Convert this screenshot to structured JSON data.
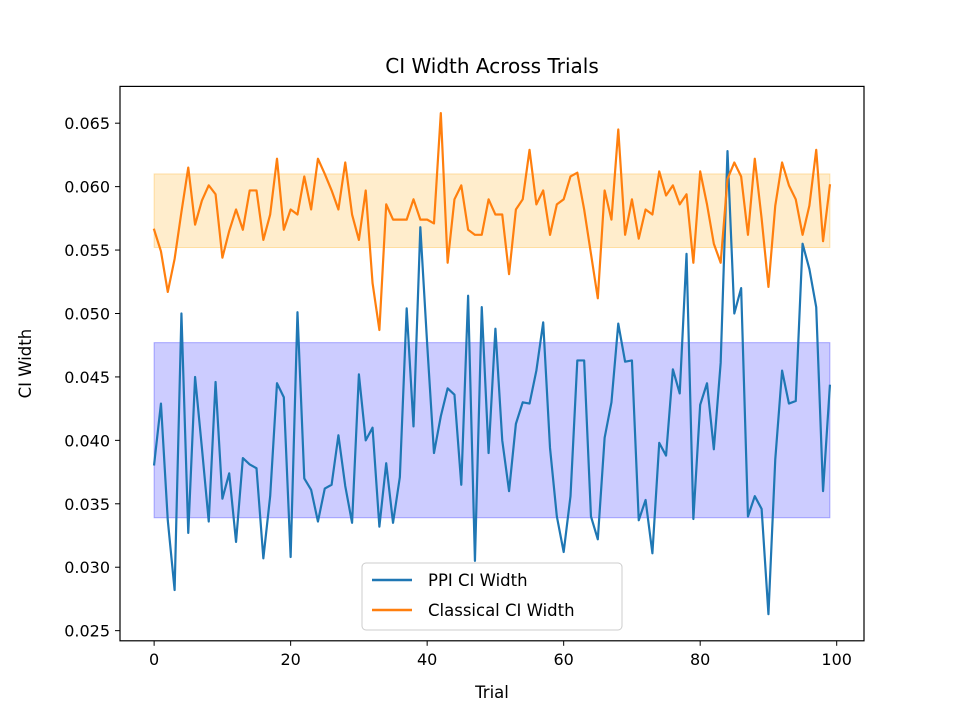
{
  "chart_data": {
    "type": "line",
    "title": "CI Width Across Trials",
    "xlabel": "Trial",
    "ylabel": "CI Width",
    "xlim": [
      -5,
      104
    ],
    "ylim": [
      0.0242,
      0.0679
    ],
    "xticks": [
      0,
      20,
      40,
      60,
      80,
      100
    ],
    "yticks": [
      0.025,
      0.03,
      0.035,
      0.04,
      0.045,
      0.05,
      0.055,
      0.06,
      0.065
    ],
    "grid": false,
    "legend_position": "lower center",
    "bands": [
      {
        "series": "PPI CI Width",
        "x_range": [
          0,
          99
        ],
        "y_range": [
          0.0339,
          0.0477
        ],
        "color": "#0000ff",
        "opacity": 0.2
      },
      {
        "series": "Classical CI Width",
        "x_range": [
          0,
          99
        ],
        "y_range": [
          0.0552,
          0.061
        ],
        "color": "#ffa500",
        "opacity": 0.2
      }
    ],
    "series": [
      {
        "name": "PPI CI Width",
        "color": "#1f77b4",
        "values": [
          0.0381,
          0.0429,
          0.0337,
          0.0282,
          0.05,
          0.0327,
          0.045,
          0.0394,
          0.0336,
          0.0446,
          0.0354,
          0.0374,
          0.032,
          0.0386,
          0.0381,
          0.0378,
          0.0307,
          0.0356,
          0.0445,
          0.0434,
          0.0308,
          0.0501,
          0.037,
          0.0361,
          0.0336,
          0.0362,
          0.0365,
          0.0404,
          0.0364,
          0.0335,
          0.0452,
          0.04,
          0.041,
          0.0332,
          0.0382,
          0.0335,
          0.0371,
          0.0504,
          0.0411,
          0.0568,
          0.0476,
          0.039,
          0.0419,
          0.0441,
          0.0436,
          0.0365,
          0.0514,
          0.0305,
          0.0505,
          0.039,
          0.0488,
          0.04,
          0.036,
          0.0413,
          0.043,
          0.0429,
          0.0455,
          0.0493,
          0.0394,
          0.034,
          0.0312,
          0.0356,
          0.0463,
          0.0463,
          0.034,
          0.0322,
          0.0402,
          0.043,
          0.0492,
          0.0462,
          0.0463,
          0.0337,
          0.0353,
          0.0311,
          0.0398,
          0.0388,
          0.0456,
          0.0437,
          0.0547,
          0.0338,
          0.0428,
          0.0445,
          0.0393,
          0.0461,
          0.0628,
          0.05,
          0.052,
          0.034,
          0.0356,
          0.0346,
          0.0263,
          0.0385,
          0.0455,
          0.0429,
          0.0431,
          0.0555,
          0.0535,
          0.0505,
          0.036,
          0.0443
        ]
      },
      {
        "name": "Classical CI Width",
        "color": "#ff7f0e",
        "values": [
          0.0566,
          0.0549,
          0.0517,
          0.0543,
          0.058,
          0.0615,
          0.057,
          0.0589,
          0.0601,
          0.0594,
          0.0544,
          0.0565,
          0.0582,
          0.0566,
          0.0597,
          0.0597,
          0.0558,
          0.0578,
          0.0622,
          0.0566,
          0.0582,
          0.0578,
          0.0608,
          0.0582,
          0.0622,
          0.061,
          0.0597,
          0.0582,
          0.0619,
          0.0578,
          0.0558,
          0.0597,
          0.0524,
          0.0487,
          0.0586,
          0.0574,
          0.0574,
          0.0574,
          0.059,
          0.0574,
          0.0574,
          0.0571,
          0.0658,
          0.054,
          0.059,
          0.0601,
          0.0566,
          0.0562,
          0.0562,
          0.059,
          0.0578,
          0.0578,
          0.0531,
          0.0582,
          0.059,
          0.0629,
          0.0586,
          0.0597,
          0.0562,
          0.0586,
          0.059,
          0.0608,
          0.0611,
          0.0582,
          0.0547,
          0.0512,
          0.0597,
          0.0574,
          0.0645,
          0.0562,
          0.059,
          0.0559,
          0.0582,
          0.0578,
          0.0612,
          0.0593,
          0.0601,
          0.0586,
          0.0594,
          0.054,
          0.0612,
          0.0586,
          0.0555,
          0.054,
          0.0606,
          0.0619,
          0.0608,
          0.0562,
          0.0622,
          0.0575,
          0.0521,
          0.0585,
          0.0619,
          0.0601,
          0.059,
          0.0562,
          0.0585,
          0.0629,
          0.0557,
          0.0601
        ]
      }
    ]
  }
}
